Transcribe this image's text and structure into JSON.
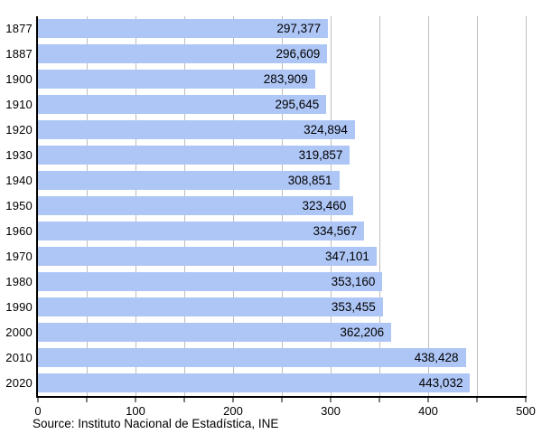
{
  "chart_data": {
    "type": "bar",
    "orientation": "horizontal",
    "title": "",
    "xlabel": "",
    "ylabel": "",
    "categories": [
      "1877",
      "1887",
      "1900",
      "1910",
      "1920",
      "1930",
      "1940",
      "1950",
      "1960",
      "1970",
      "1980",
      "1990",
      "2000",
      "2010",
      "2020"
    ],
    "values": [
      297377,
      296609,
      283909,
      295645,
      324894,
      319857,
      308851,
      323460,
      334567,
      347101,
      353160,
      353455,
      362206,
      438428,
      443032
    ],
    "value_labels": [
      "297,377",
      "296,609",
      "283,909",
      "295,645",
      "324,894",
      "319,857",
      "308,851",
      "323,460",
      "334,567",
      "347,101",
      "353,160",
      "353,455",
      "362,206",
      "438,428",
      "443,032"
    ],
    "xlim": [
      0,
      500000
    ],
    "x_axis_unit": "thousands",
    "x_major_ticks": [
      0,
      100,
      200,
      300,
      400,
      500
    ],
    "x_minor_tick_step": 50,
    "grid": "vertical gridlines every 50 (thousands)",
    "legend_position": "none",
    "source": "Source: Instituto Nacional de Estadística, INE",
    "colors": {
      "bar": "#aec6f6",
      "grid": "#bdbdbd",
      "axis": "#000000",
      "text": "#000000",
      "background": "#ffffff"
    }
  }
}
